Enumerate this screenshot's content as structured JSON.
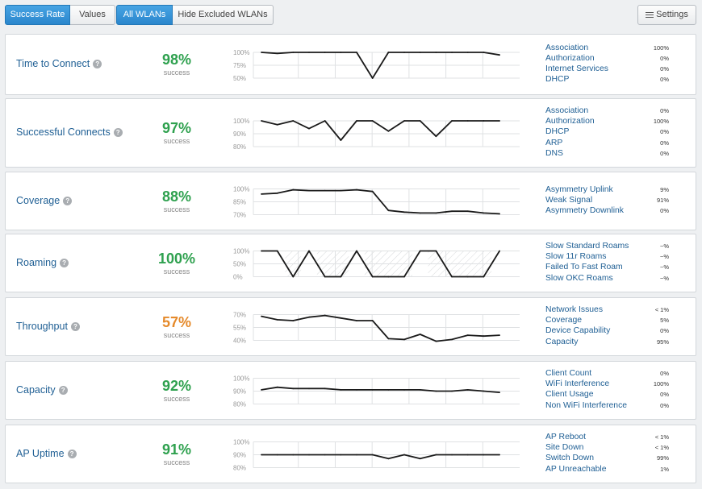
{
  "toolbar": {
    "success_rate": "Success Rate",
    "values": "Values",
    "all_wlans": "All WLANs",
    "hide_excluded": "Hide Excluded WLANs",
    "settings": "Settings"
  },
  "colors": {
    "green": "#2fa14f",
    "orange": "#e58a2b",
    "link": "#1f5f94",
    "accent": "#2a86cc"
  },
  "metrics": [
    {
      "name": "Time to Connect",
      "value": "98%",
      "sub": "success",
      "status": "green",
      "ticks": [
        "100%",
        "75%",
        "50%"
      ],
      "yrange": [
        50,
        100
      ],
      "missing": [],
      "series": [
        100,
        98,
        100,
        100,
        100,
        100,
        100,
        50,
        100,
        100,
        100,
        100,
        100,
        100,
        100,
        95
      ],
      "reasons": [
        {
          "label": "Association",
          "value": "100%"
        },
        {
          "label": "Authorization",
          "value": "0%"
        },
        {
          "label": "Internet Services",
          "value": "0%"
        },
        {
          "label": "DHCP",
          "value": "0%"
        }
      ]
    },
    {
      "name": "Successful Connects",
      "value": "97%",
      "sub": "success",
      "status": "green",
      "ticks": [
        "100%",
        "90%",
        "80%"
      ],
      "yrange": [
        80,
        100
      ],
      "missing": [],
      "series": [
        100,
        97,
        100,
        94,
        100,
        85,
        100,
        100,
        92,
        100,
        100,
        88,
        100,
        100,
        100,
        100
      ],
      "reasons": [
        {
          "label": "Association",
          "value": "0%"
        },
        {
          "label": "Authorization",
          "value": "100%"
        },
        {
          "label": "DHCP",
          "value": "0%"
        },
        {
          "label": "ARP",
          "value": "0%"
        },
        {
          "label": "DNS",
          "value": "0%"
        }
      ]
    },
    {
      "name": "Coverage",
      "value": "88%",
      "sub": "success",
      "status": "green",
      "ticks": [
        "100%",
        "85%",
        "70%"
      ],
      "yrange": [
        70,
        100
      ],
      "missing": [],
      "series": [
        94,
        95,
        99,
        98,
        98,
        98,
        99,
        97,
        75,
        73,
        72,
        72,
        74,
        74,
        72,
        71
      ],
      "reasons": [
        {
          "label": "Asymmetry Uplink",
          "value": "9%"
        },
        {
          "label": "Weak Signal",
          "value": "91%"
        },
        {
          "label": "Asymmetry Downlink",
          "value": "0%"
        }
      ]
    },
    {
      "name": "Roaming",
      "value": "100%",
      "sub": "success",
      "status": "green",
      "ticks": [
        "100%",
        "50%",
        "0%"
      ],
      "yrange": [
        0,
        100
      ],
      "missing": [
        [
          1.5,
          2.5
        ],
        [
          3.5,
          5.5
        ],
        [
          6.5,
          9.5
        ],
        [
          10.5,
          14.5
        ]
      ],
      "series": [
        100,
        100,
        0,
        100,
        0,
        0,
        100,
        0,
        0,
        0,
        100,
        100,
        0,
        0,
        0,
        100
      ],
      "reasons": [
        {
          "label": "Slow Standard Roams",
          "value": "~%"
        },
        {
          "label": "Slow 11r Roams",
          "value": "~%"
        },
        {
          "label": "Failed To Fast Roam",
          "value": "~%"
        },
        {
          "label": "Slow OKC Roams",
          "value": "~%"
        }
      ]
    },
    {
      "name": "Throughput",
      "value": "57%",
      "sub": "success",
      "status": "orange",
      "ticks": [
        "70%",
        "55%",
        "40%"
      ],
      "yrange": [
        40,
        70
      ],
      "missing": [],
      "series": [
        68,
        64,
        63,
        67,
        69,
        66,
        63,
        63,
        42,
        41,
        47,
        39,
        41,
        46,
        45,
        46
      ],
      "reasons": [
        {
          "label": "Network Issues",
          "value": "< 1%"
        },
        {
          "label": "Coverage",
          "value": "5%"
        },
        {
          "label": "Device Capability",
          "value": "0%"
        },
        {
          "label": "Capacity",
          "value": "95%"
        }
      ]
    },
    {
      "name": "Capacity",
      "value": "92%",
      "sub": "success",
      "status": "green",
      "ticks": [
        "100%",
        "90%",
        "80%"
      ],
      "yrange": [
        80,
        100
      ],
      "missing": [],
      "series": [
        91,
        93,
        92,
        92,
        92,
        91,
        91,
        91,
        91,
        91,
        91,
        90,
        90,
        91,
        90,
        89
      ],
      "reasons": [
        {
          "label": "Client Count",
          "value": "0%"
        },
        {
          "label": "WiFi Interference",
          "value": "100%"
        },
        {
          "label": "Client Usage",
          "value": "0%"
        },
        {
          "label": "Non WiFi Interference",
          "value": "0%"
        }
      ]
    },
    {
      "name": "AP Uptime",
      "value": "91%",
      "sub": "success",
      "status": "green",
      "ticks": [
        "100%",
        "90%",
        "80%"
      ],
      "yrange": [
        80,
        100
      ],
      "missing": [],
      "series": [
        90,
        90,
        90,
        90,
        90,
        90,
        90,
        90,
        87,
        90,
        87,
        90,
        90,
        90,
        90,
        90
      ],
      "reasons": [
        {
          "label": "AP Reboot",
          "value": "< 1%"
        },
        {
          "label": "Site Down",
          "value": "< 1%"
        },
        {
          "label": "Switch Down",
          "value": "99%"
        },
        {
          "label": "AP Unreachable",
          "value": "1%"
        }
      ]
    }
  ]
}
